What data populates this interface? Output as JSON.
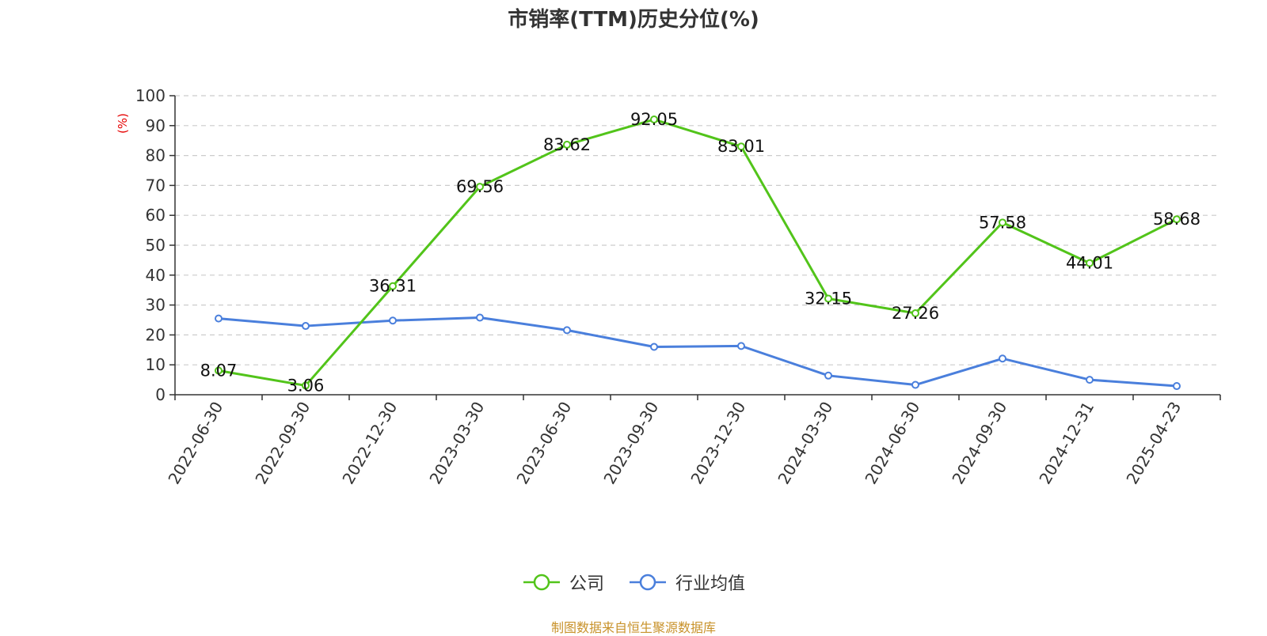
{
  "chart_data": {
    "type": "line",
    "title": "市销率(TTM)历史分位(%)",
    "ylabel": "(%)",
    "xlabel": "",
    "ylim": [
      0,
      100
    ],
    "yticks": [
      0,
      10,
      20,
      30,
      40,
      50,
      60,
      70,
      80,
      90,
      100
    ],
    "grid": true,
    "legend_position": "bottom-center",
    "categories": [
      "2022-06-30",
      "2022-09-30",
      "2022-12-30",
      "2023-03-30",
      "2023-06-30",
      "2023-09-30",
      "2023-12-30",
      "2024-03-30",
      "2024-06-30",
      "2024-09-30",
      "2024-12-31",
      "2025-04-23"
    ],
    "series": [
      {
        "name": "公司",
        "color": "#52c41a",
        "show_labels": true,
        "values": [
          8.07,
          3.06,
          36.31,
          69.56,
          83.62,
          92.05,
          83.01,
          32.15,
          27.26,
          57.58,
          44.01,
          58.68
        ]
      },
      {
        "name": "行业均值",
        "color": "#4a7fdc",
        "show_labels": false,
        "values": [
          25.5,
          23.0,
          24.8,
          25.8,
          21.6,
          16.0,
          16.3,
          6.4,
          3.3,
          12.1,
          5.0,
          2.9
        ]
      }
    ]
  },
  "source_note": "制图数据来自恒生聚源数据库"
}
